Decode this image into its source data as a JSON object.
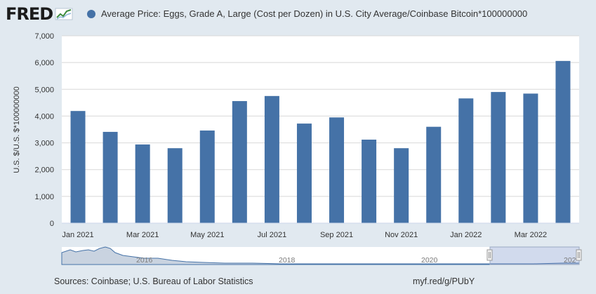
{
  "header": {
    "logo_text": "FRED",
    "logo_icon": "trend-line-icon"
  },
  "colors": {
    "background": "#e1e9f0",
    "bar": "#4572a7",
    "grid": "#d8d8d8",
    "navigator_fill": "#c9d3e0",
    "navigator_line": "#4572a7"
  },
  "chart_data": {
    "type": "bar",
    "series": [
      {
        "name": "Average Price: Eggs, Grade A, Large (Cost per Dozen) in U.S. City Average/Coinbase Bitcoin*100000000",
        "values": [
          4190,
          3410,
          2940,
          2800,
          3460,
          4560,
          4750,
          3720,
          3950,
          3120,
          2800,
          3600,
          4660,
          4900,
          4840,
          6060
        ]
      }
    ],
    "categories": [
      "Jan 2021",
      "Feb 2021",
      "Mar 2021",
      "Apr 2021",
      "May 2021",
      "Jun 2021",
      "Jul 2021",
      "Aug 2021",
      "Sep 2021",
      "Oct 2021",
      "Nov 2021",
      "Dec 2021",
      "Jan 2022",
      "Feb 2022",
      "Mar 2022",
      "Apr 2022"
    ],
    "x_tick_labels": [
      "Jan 2021",
      "Mar 2021",
      "May 2021",
      "Jul 2021",
      "Sep 2021",
      "Nov 2021",
      "Jan 2022",
      "Mar 2022"
    ],
    "ylabel": "U.S. $/U.S. $*100000000",
    "ylim": [
      0,
      7000
    ],
    "y_ticks": [
      "0",
      "1,000",
      "2,000",
      "3,000",
      "4,000",
      "5,000",
      "6,000",
      "7,000"
    ],
    "grid": true,
    "legend_position": "top"
  },
  "navigator": {
    "labels": [
      "2016",
      "2018",
      "2020",
      "202"
    ]
  },
  "footer": {
    "sources": "Sources: Coinbase; U.S. Bureau of Labor Statistics",
    "link": "myf.red/g/PUbY"
  }
}
